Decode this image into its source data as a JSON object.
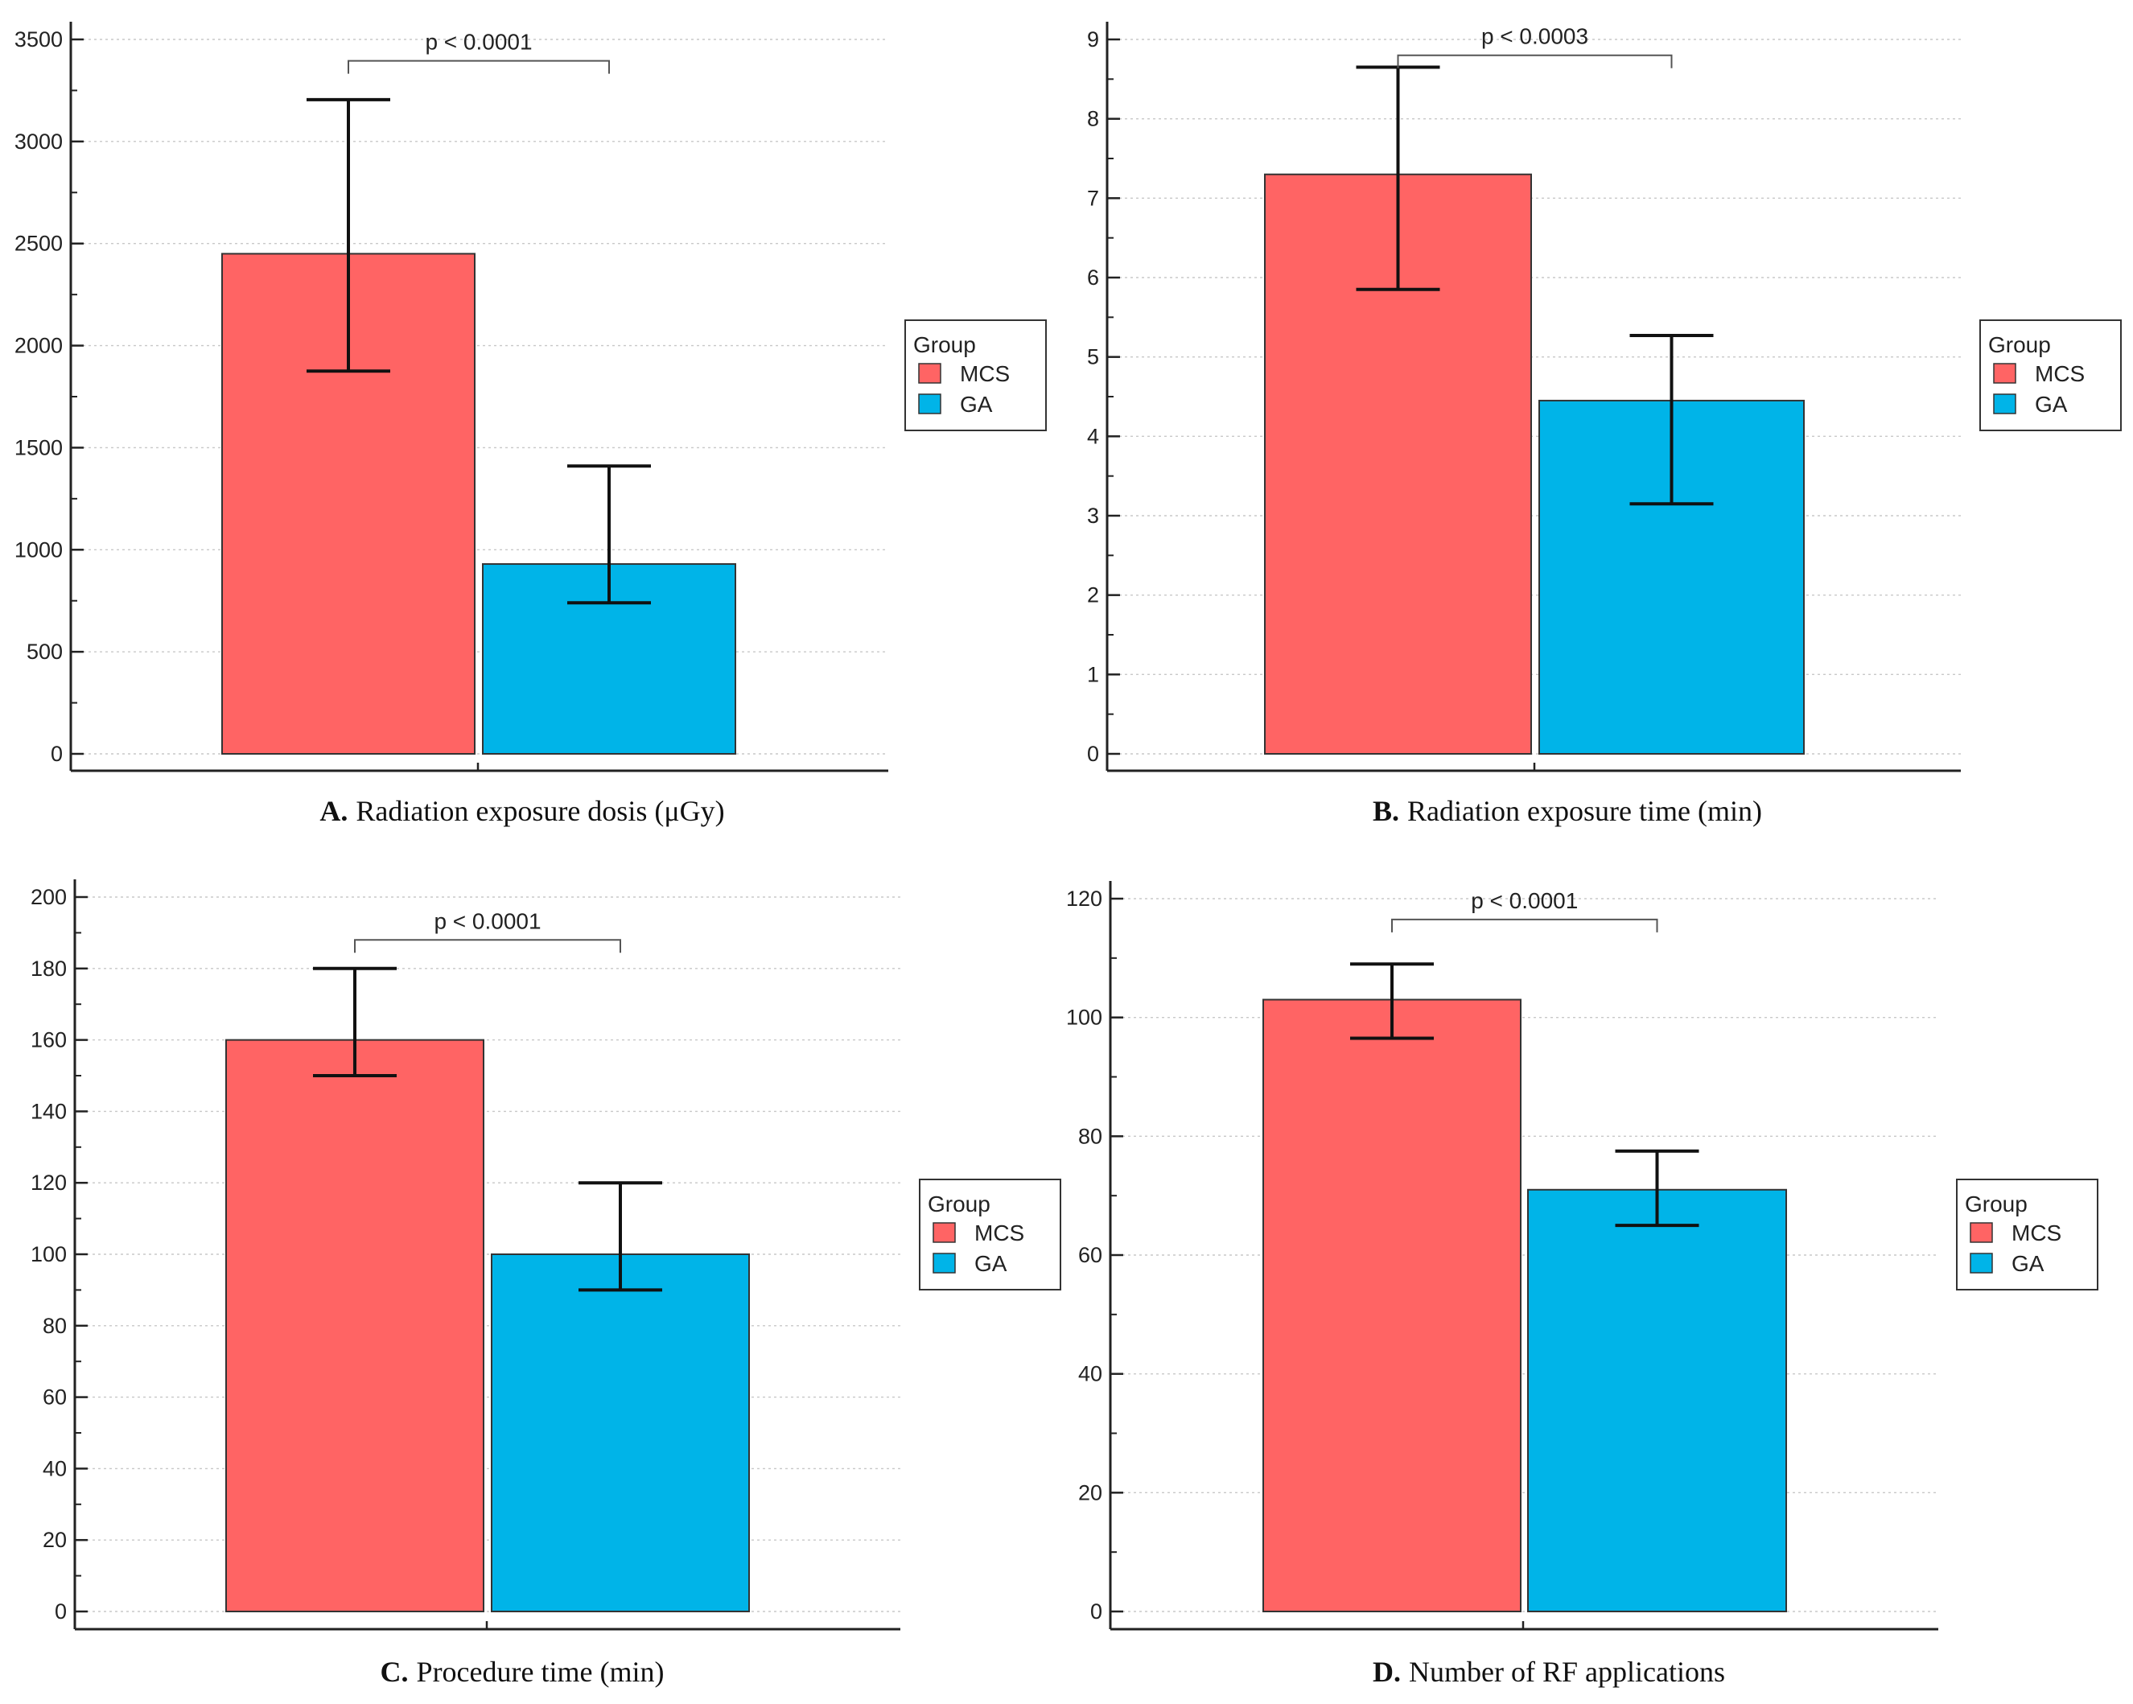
{
  "colors": {
    "MCS": "#ff6464",
    "GA": "#00b4e8"
  },
  "chart_data": [
    {
      "id": "A",
      "type": "bar",
      "title_prefix": "A.",
      "title": "Radiation exposure dosis (μGy)",
      "categories": [
        "MCS",
        "GA"
      ],
      "values": [
        2450,
        930
      ],
      "error_high": [
        3205,
        1410
      ],
      "error_low": [
        1875,
        740
      ],
      "ylim": [
        0,
        3500
      ],
      "yticks": [
        0,
        500,
        1000,
        1500,
        2000,
        2500,
        3000,
        3500
      ],
      "ytick_labels": [
        "0",
        "500",
        "1000",
        "1500",
        "2000",
        "2500",
        "3000",
        "3500"
      ],
      "minor_step": 250,
      "p_label": "p < 0.0001",
      "p_level": 3395,
      "legend": {
        "title": "Group",
        "entries": [
          "MCS",
          "GA"
        ]
      },
      "grid": true
    },
    {
      "id": "B",
      "type": "bar",
      "title_prefix": "B.",
      "title": "Radiation exposure time (min)",
      "categories": [
        "MCS",
        "GA"
      ],
      "values": [
        7.3,
        4.45
      ],
      "error_high": [
        8.65,
        5.27
      ],
      "error_low": [
        5.85,
        3.15
      ],
      "ylim": [
        0,
        9
      ],
      "yticks": [
        0,
        1,
        2,
        3,
        4,
        5,
        6,
        7,
        8,
        9
      ],
      "ytick_labels": [
        "0",
        "1",
        "2",
        "3",
        "4",
        "5",
        "6",
        "7",
        "8",
        "9"
      ],
      "minor_step": 0.5,
      "p_label": "p < 0.0003",
      "p_level": 8.8,
      "legend": {
        "title": "Group",
        "entries": [
          "MCS",
          "GA"
        ]
      },
      "grid": true
    },
    {
      "id": "C",
      "type": "bar",
      "title_prefix": "C.",
      "title": "Procedure time (min)",
      "categories": [
        "MCS",
        "GA"
      ],
      "values": [
        160,
        100
      ],
      "error_high": [
        180,
        120
      ],
      "error_low": [
        150,
        90
      ],
      "ylim": [
        0,
        200
      ],
      "yticks": [
        0,
        20,
        40,
        60,
        80,
        100,
        120,
        140,
        160,
        180,
        200
      ],
      "ytick_labels": [
        "0",
        "20",
        "40",
        "60",
        "80",
        "100",
        "120",
        "140",
        "160",
        "180",
        "200"
      ],
      "minor_step": 10,
      "p_label": "p < 0.0001",
      "p_level": 188,
      "legend": {
        "title": "Group",
        "entries": [
          "MCS",
          "GA"
        ]
      },
      "grid": true
    },
    {
      "id": "D",
      "type": "bar",
      "title_prefix": "D.",
      "title": "Number of RF applications",
      "categories": [
        "MCS",
        "GA"
      ],
      "values": [
        103,
        71
      ],
      "error_high": [
        109,
        77.5
      ],
      "error_low": [
        96.5,
        65
      ],
      "ylim": [
        0,
        120
      ],
      "yticks": [
        0,
        20,
        40,
        60,
        80,
        100,
        120
      ],
      "ytick_labels": [
        "0",
        "20",
        "40",
        "60",
        "80",
        "100",
        "120"
      ],
      "minor_step": 10,
      "p_label": "p < 0.0001",
      "p_level": 116.5,
      "legend": {
        "title": "Group",
        "entries": [
          "MCS",
          "GA"
        ]
      },
      "grid": true
    }
  ]
}
